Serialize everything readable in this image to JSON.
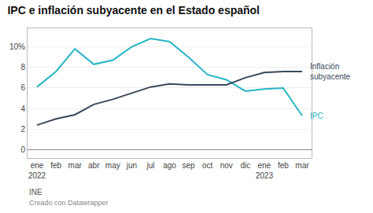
{
  "chart_data": {
    "type": "line",
    "title": "IPC e inflación subyacente en el Estado español",
    "categories": [
      "ene\n2022",
      "feb",
      "mar",
      "abr",
      "may",
      "jun",
      "jul",
      "ago",
      "sep",
      "oct",
      "nov",
      "dic",
      "ene\n2023",
      "feb",
      "mar"
    ],
    "series": [
      {
        "name": "IPC",
        "color": "#27b5c5",
        "values": [
          6.1,
          7.6,
          9.8,
          8.3,
          8.7,
          10.0,
          10.8,
          10.5,
          9.0,
          7.3,
          6.8,
          5.7,
          5.9,
          6.0,
          3.3
        ]
      },
      {
        "name": "Inflación\nsubyacente",
        "color": "#3a4a5a",
        "values": [
          2.4,
          3.0,
          3.4,
          4.4,
          4.9,
          5.5,
          6.1,
          6.4,
          6.3,
          6.3,
          6.3,
          7.0,
          7.5,
          7.6,
          7.6
        ]
      }
    ],
    "ylim": [
      -0.8,
      11.8
    ],
    "yticks": [
      0,
      2,
      4,
      6,
      8,
      {
        "value": 10,
        "label": "10%"
      }
    ],
    "grid": true,
    "source": "INE",
    "credit": "Creado con Datawrapper"
  }
}
